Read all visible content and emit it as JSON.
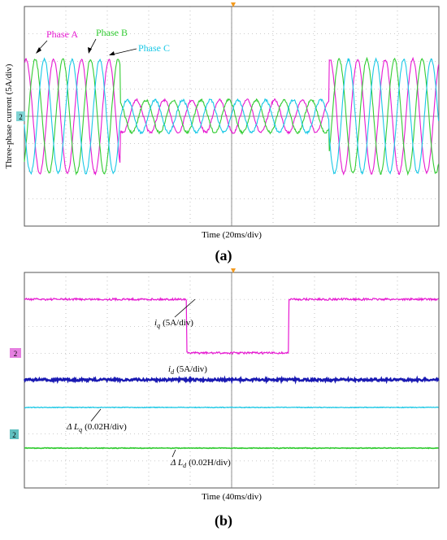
{
  "panel_a": {
    "y_axis_label": "Three-phase current (5A/div)",
    "x_axis_label": "Time (20ms/div)",
    "caption": "(a)",
    "channel_marker": "2",
    "phases": [
      {
        "name": "Phase A",
        "color": "#e619d1"
      },
      {
        "name": "Phase B",
        "color": "#33cc33"
      },
      {
        "name": "Phase C",
        "color": "#19c8e6"
      }
    ]
  },
  "panel_b": {
    "x_axis_label": "Time (40ms/div)",
    "caption": "(b)",
    "channel_marker_1": "2",
    "channel_marker_2": "2",
    "traces": [
      {
        "symbol": "i",
        "sub": "q",
        "scale": "(5A/div)",
        "color": "#e619d1"
      },
      {
        "symbol": "i",
        "sub": "d",
        "scale": "(5A/div)",
        "color": "#1a1ab3"
      },
      {
        "symbol": "Δ L",
        "sub": "q",
        "scale": "(0.02H/div)",
        "color": "#19c8e6"
      },
      {
        "symbol": "Δ L",
        "sub": "d",
        "scale": "(0.02H/div)",
        "color": "#33cc33"
      }
    ]
  }
}
